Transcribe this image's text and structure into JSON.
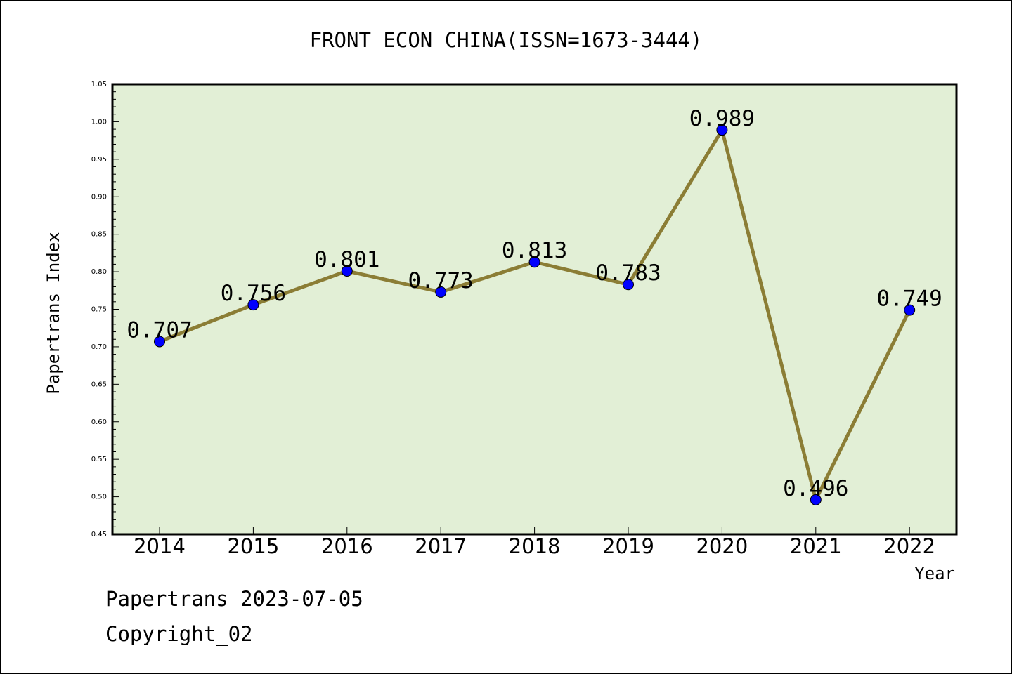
{
  "chart_data": {
    "type": "line",
    "title": "FRONT ECON CHINA(ISSN=1673-3444)",
    "xlabel": "Year",
    "ylabel": "Papertrans Index",
    "categories": [
      "2014",
      "2015",
      "2016",
      "2017",
      "2018",
      "2019",
      "2020",
      "2021",
      "2022"
    ],
    "series": [
      {
        "values": [
          0.707,
          0.756,
          0.801,
          0.773,
          0.813,
          0.783,
          0.989,
          0.496,
          0.749
        ],
        "labels": [
          "0.707",
          "0.756",
          "0.801",
          "0.773",
          "0.813",
          "0.783",
          "0.989",
          "0.496",
          "0.749"
        ],
        "line_color": "#8b7d35",
        "marker_color": "#0000ff"
      }
    ],
    "ylim": [
      0.45,
      1.05
    ],
    "yticks": [
      "0.45",
      "0.50",
      "0.55",
      "0.60",
      "0.65",
      "0.70",
      "0.75",
      "0.80",
      "0.85",
      "0.90",
      "0.95",
      "1.00",
      "1.05"
    ],
    "grid": false,
    "plot_background": "#e2efd6"
  },
  "footer": {
    "line1": "Papertrans 2023-07-05",
    "line2": "Copyright_02"
  }
}
